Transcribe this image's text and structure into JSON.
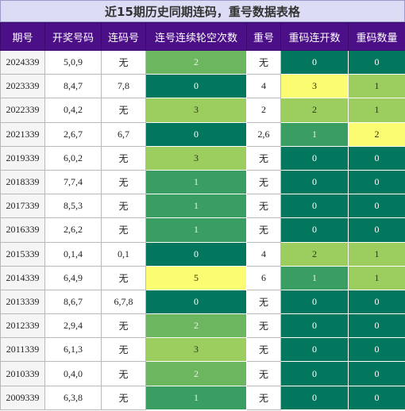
{
  "title": "近15期历史同期连码，重号数据表格",
  "headers": [
    "期号",
    "开奖号码",
    "连码号",
    "连号连续轮空次数",
    "重号",
    "重码连开数",
    "重码数量"
  ],
  "rows": [
    {
      "period": "2024339",
      "numbers": "5,0,9",
      "consec": "无",
      "streak": "2",
      "repeat": "无",
      "rep_open": "0",
      "rep_count": "0"
    },
    {
      "period": "2023339",
      "numbers": "8,4,7",
      "consec": "7,8",
      "streak": "0",
      "repeat": "4",
      "rep_open": "3",
      "rep_count": "1"
    },
    {
      "period": "2022339",
      "numbers": "0,4,2",
      "consec": "无",
      "streak": "3",
      "repeat": "2",
      "rep_open": "2",
      "rep_count": "1"
    },
    {
      "period": "2021339",
      "numbers": "2,6,7",
      "consec": "6,7",
      "streak": "0",
      "repeat": "2,6",
      "rep_open": "1",
      "rep_count": "2"
    },
    {
      "period": "2019339",
      "numbers": "6,0,2",
      "consec": "无",
      "streak": "3",
      "repeat": "无",
      "rep_open": "0",
      "rep_count": "0"
    },
    {
      "period": "2018339",
      "numbers": "7,7,4",
      "consec": "无",
      "streak": "1",
      "repeat": "无",
      "rep_open": "0",
      "rep_count": "0"
    },
    {
      "period": "2017339",
      "numbers": "8,5,3",
      "consec": "无",
      "streak": "1",
      "repeat": "无",
      "rep_open": "0",
      "rep_count": "0"
    },
    {
      "period": "2016339",
      "numbers": "2,6,2",
      "consec": "无",
      "streak": "1",
      "repeat": "无",
      "rep_open": "0",
      "rep_count": "0"
    },
    {
      "period": "2015339",
      "numbers": "0,1,4",
      "consec": "0,1",
      "streak": "0",
      "repeat": "4",
      "rep_open": "2",
      "rep_count": "1"
    },
    {
      "period": "2014339",
      "numbers": "6,4,9",
      "consec": "无",
      "streak": "5",
      "repeat": "6",
      "rep_open": "1",
      "rep_count": "1"
    },
    {
      "period": "2013339",
      "numbers": "8,6,7",
      "consec": "6,7,8",
      "streak": "0",
      "repeat": "无",
      "rep_open": "0",
      "rep_count": "0"
    },
    {
      "period": "2012339",
      "numbers": "2,9,4",
      "consec": "无",
      "streak": "2",
      "repeat": "无",
      "rep_open": "0",
      "rep_count": "0"
    },
    {
      "period": "2011339",
      "numbers": "6,1,3",
      "consec": "无",
      "streak": "3",
      "repeat": "无",
      "rep_open": "0",
      "rep_count": "0"
    },
    {
      "period": "2010339",
      "numbers": "0,4,0",
      "consec": "无",
      "streak": "2",
      "repeat": "无",
      "rep_open": "0",
      "rep_count": "0"
    },
    {
      "period": "2009339",
      "numbers": "6,3,8",
      "consec": "无",
      "streak": "1",
      "repeat": "无",
      "rep_open": "0",
      "rep_count": "0"
    }
  ],
  "colors": {
    "header_bg": "#4b0f87",
    "title_bg": "#dcdcf4",
    "dark_green": "#02775e",
    "mid_green": "#3a9e63",
    "light_green": "#6bb65e",
    "lime": "#9ccd5f",
    "yellow": "#fcfc73"
  }
}
